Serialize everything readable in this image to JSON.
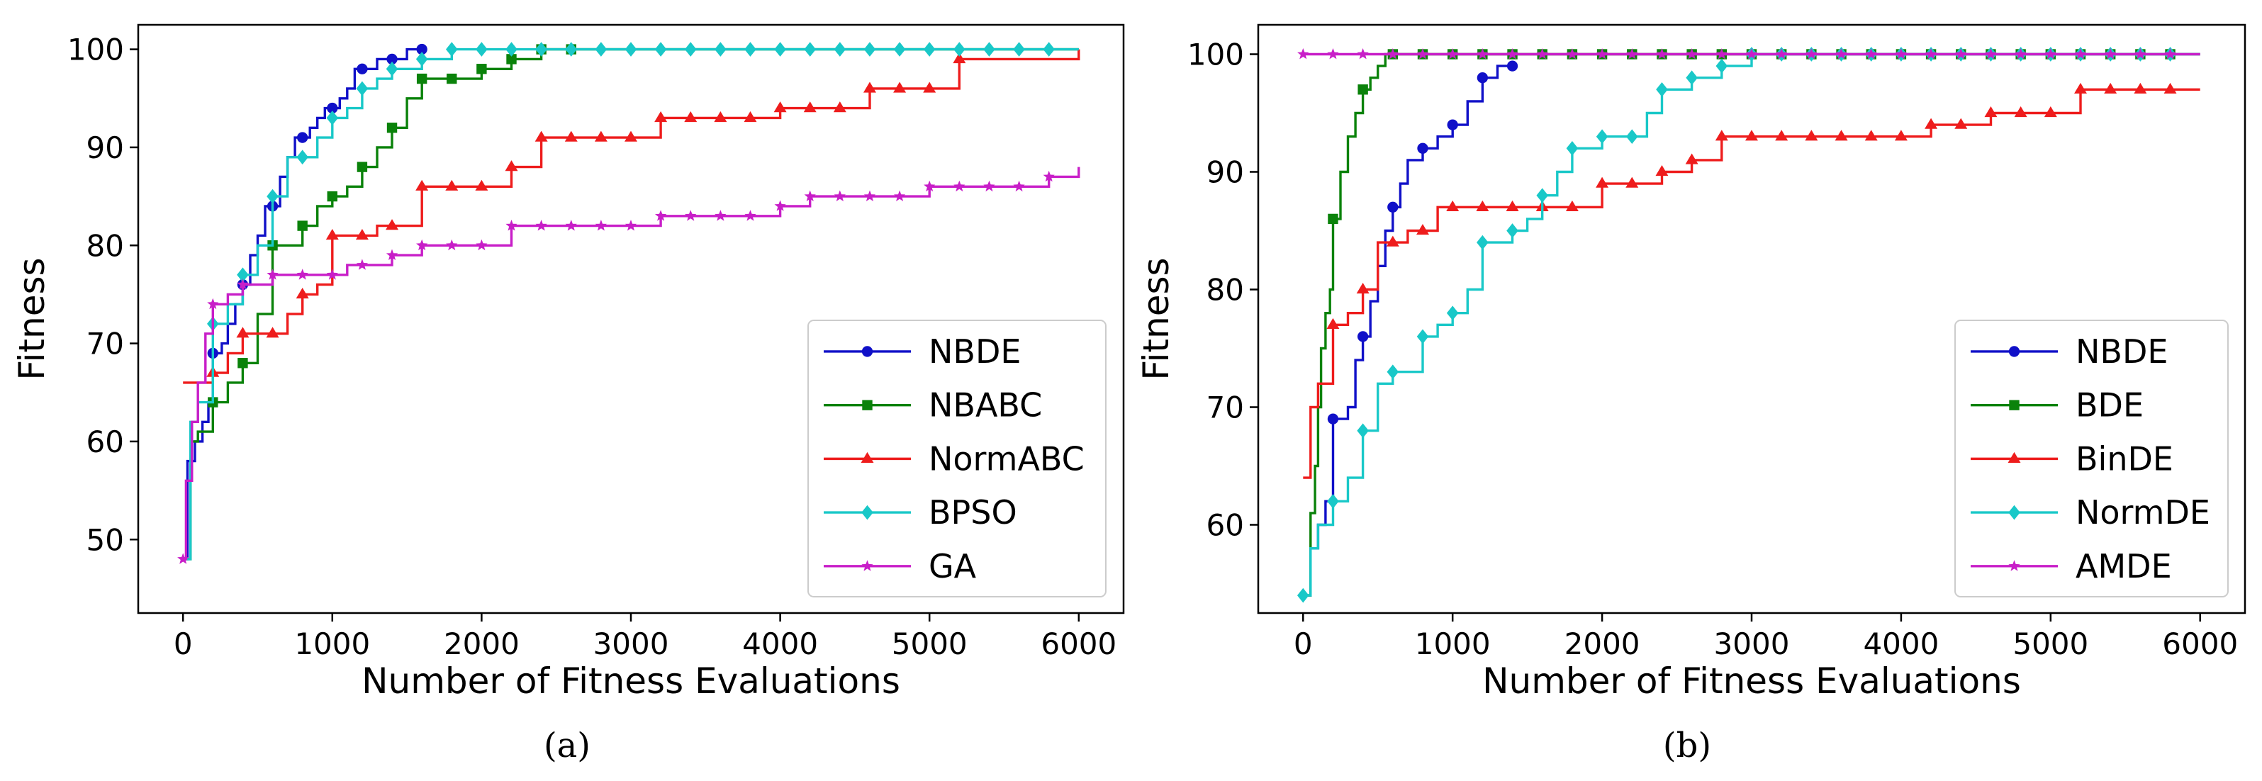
{
  "chart_data": [
    {
      "type": "line",
      "panel_label": "(a)",
      "xlabel": "Number of Fitness Evaluations",
      "ylabel": "Fitness",
      "xlim": [
        -300,
        6300
      ],
      "ylim": [
        42.5,
        102.5
      ],
      "xticks": [
        0,
        1000,
        2000,
        3000,
        4000,
        5000,
        6000
      ],
      "yticks": [
        50,
        60,
        70,
        80,
        90,
        100
      ],
      "legend_position": "lower-right",
      "series": [
        {
          "name": "NBDE",
          "color": "#1010c8",
          "marker": "circle",
          "x": [
            0,
            30,
            80,
            130,
            170,
            200,
            260,
            300,
            350,
            400,
            450,
            500,
            550,
            600,
            650,
            700,
            750,
            800,
            850,
            900,
            950,
            1000,
            1050,
            1100,
            1150,
            1200,
            1300,
            1400,
            1500,
            1600
          ],
          "y": [
            48,
            58,
            60,
            62,
            64,
            69,
            70,
            72,
            74,
            76,
            79,
            81,
            84,
            84,
            87,
            89,
            91,
            91,
            92,
            93,
            94,
            94,
            95,
            96,
            98,
            98,
            99,
            99,
            100,
            100
          ],
          "marker_x": [
            200,
            400,
            600,
            800,
            1000,
            1200,
            1400,
            1600
          ]
        },
        {
          "name": "NBABC",
          "color": "#0a820a",
          "marker": "square",
          "x": [
            0,
            50,
            100,
            200,
            300,
            400,
            500,
            600,
            700,
            800,
            900,
            1000,
            1100,
            1200,
            1300,
            1400,
            1500,
            1600,
            1800,
            2000,
            2200,
            2400,
            2600,
            6000
          ],
          "y": [
            48,
            60,
            61,
            64,
            66,
            68,
            73,
            80,
            80,
            82,
            84,
            85,
            86,
            88,
            90,
            92,
            95,
            97,
            97,
            98,
            99,
            100,
            100,
            100
          ],
          "marker_x": [
            200,
            400,
            600,
            800,
            1000,
            1200,
            1400,
            1600,
            1800,
            2000,
            2200,
            2400,
            2600
          ]
        },
        {
          "name": "NormABC",
          "color": "#ee1c1c",
          "marker": "triangle",
          "x": [
            0,
            200,
            300,
            400,
            600,
            700,
            800,
            900,
            1000,
            1200,
            1300,
            1400,
            1600,
            1800,
            2000,
            2200,
            2400,
            2600,
            2800,
            3000,
            3200,
            3400,
            3600,
            3800,
            4000,
            4200,
            4400,
            4600,
            4800,
            5000,
            5200,
            5400,
            6000
          ],
          "y": [
            66,
            67,
            69,
            71,
            71,
            73,
            75,
            76,
            81,
            81,
            82,
            82,
            86,
            86,
            86,
            88,
            91,
            91,
            91,
            91,
            93,
            93,
            93,
            93,
            94,
            94,
            94,
            96,
            96,
            96,
            99,
            99,
            100
          ],
          "marker_x": [
            200,
            400,
            600,
            800,
            1000,
            1200,
            1400,
            1600,
            1800,
            2000,
            2200,
            2400,
            2600,
            2800,
            3000,
            3200,
            3400,
            3600,
            3800,
            4000,
            4200,
            4400,
            4600,
            4800,
            5000,
            5200
          ]
        },
        {
          "name": "BPSO",
          "color": "#19c8c8",
          "marker": "diamond",
          "x": [
            0,
            50,
            100,
            200,
            300,
            400,
            500,
            600,
            700,
            800,
            900,
            1000,
            1100,
            1200,
            1300,
            1400,
            1500,
            1600,
            1800,
            2000,
            6000
          ],
          "y": [
            48,
            62,
            64,
            72,
            74,
            77,
            80,
            85,
            89,
            89,
            91,
            93,
            94,
            96,
            97,
            98,
            98,
            99,
            100,
            100,
            100
          ],
          "marker_x": [
            200,
            400,
            600,
            800,
            1000,
            1200,
            1400,
            1600,
            1800,
            2000,
            2200,
            2400,
            2600,
            2800,
            3000,
            3200,
            3400,
            3600,
            3800,
            4000,
            4200,
            4400,
            4600,
            4800,
            5000,
            5200,
            5400,
            5600,
            5800
          ]
        },
        {
          "name": "GA",
          "color": "#c81ec8",
          "marker": "star",
          "x": [
            0,
            20,
            60,
            100,
            150,
            200,
            300,
            400,
            600,
            1000,
            1100,
            1200,
            1400,
            1600,
            1800,
            2000,
            2200,
            2400,
            2600,
            2800,
            3000,
            3200,
            3400,
            3600,
            3800,
            4000,
            4200,
            4400,
            4600,
            4800,
            5000,
            5200,
            5400,
            5600,
            5800,
            5900,
            6000
          ],
          "y": [
            48,
            56,
            62,
            66,
            71,
            74,
            75,
            76,
            77,
            77,
            78,
            78,
            79,
            80,
            80,
            80,
            82,
            82,
            82,
            82,
            82,
            83,
            83,
            83,
            83,
            84,
            85,
            85,
            85,
            85,
            86,
            86,
            86,
            86,
            87,
            87,
            88
          ],
          "marker_x": [
            0,
            200,
            400,
            600,
            800,
            1000,
            1200,
            1400,
            1600,
            1800,
            2000,
            2200,
            2400,
            2600,
            2800,
            3000,
            3200,
            3400,
            3600,
            3800,
            4000,
            4200,
            4400,
            4600,
            4800,
            5000,
            5200,
            5400,
            5600,
            5800
          ]
        }
      ]
    },
    {
      "type": "line",
      "panel_label": "(b)",
      "xlabel": "Number of Fitness Evaluations",
      "ylabel": "Fitness",
      "xlim": [
        -300,
        6300
      ],
      "ylim": [
        52.5,
        102.5
      ],
      "xticks": [
        0,
        1000,
        2000,
        3000,
        4000,
        5000,
        6000
      ],
      "yticks": [
        60,
        70,
        80,
        90,
        100
      ],
      "legend_position": "lower-right",
      "series": [
        {
          "name": "NBDE",
          "color": "#1010c8",
          "marker": "circle",
          "x": [
            0,
            50,
            100,
            150,
            200,
            300,
            350,
            400,
            450,
            500,
            550,
            600,
            650,
            700,
            800,
            900,
            1000,
            1100,
            1200,
            1300,
            1400
          ],
          "y": [
            54,
            58,
            60,
            62,
            69,
            70,
            74,
            76,
            79,
            82,
            85,
            87,
            89,
            91,
            92,
            93,
            94,
            96,
            98,
            99,
            99
          ],
          "marker_x": [
            200,
            400,
            600,
            800,
            1000,
            1200,
            1400
          ]
        },
        {
          "name": "BDE",
          "color": "#0a820a",
          "marker": "square",
          "x": [
            0,
            50,
            80,
            100,
            120,
            150,
            180,
            200,
            250,
            300,
            350,
            400,
            450,
            500,
            550,
            600,
            6000
          ],
          "y": [
            54,
            61,
            65,
            70,
            75,
            78,
            80,
            86,
            90,
            93,
            95,
            97,
            98,
            99,
            100,
            100,
            100
          ],
          "marker_x": [
            200,
            400,
            600,
            800,
            1000,
            1200,
            1400,
            1600,
            1800,
            2000,
            2200,
            2400,
            2600,
            2800,
            3000,
            3200,
            3400,
            3600,
            3800,
            4000,
            4200,
            4400,
            4600,
            4800,
            5000,
            5200,
            5400,
            5600,
            5800
          ]
        },
        {
          "name": "BinDE",
          "color": "#ee1c1c",
          "marker": "triangle",
          "x": [
            0,
            50,
            100,
            200,
            300,
            400,
            500,
            600,
            700,
            800,
            900,
            1000,
            1200,
            1400,
            1600,
            1800,
            2000,
            2200,
            2400,
            2600,
            2800,
            3000,
            3200,
            3400,
            3600,
            3800,
            4000,
            4200,
            4400,
            4600,
            4800,
            5000,
            5200,
            5400,
            6000
          ],
          "y": [
            64,
            70,
            72,
            77,
            78,
            80,
            84,
            84,
            85,
            85,
            87,
            87,
            87,
            87,
            87,
            87,
            89,
            89,
            90,
            91,
            93,
            93,
            93,
            93,
            93,
            93,
            93,
            94,
            94,
            95,
            95,
            95,
            97,
            97,
            97
          ],
          "marker_x": [
            200,
            400,
            600,
            800,
            1000,
            1200,
            1400,
            1600,
            1800,
            2000,
            2200,
            2400,
            2600,
            2800,
            3000,
            3200,
            3400,
            3600,
            3800,
            4000,
            4200,
            4400,
            4600,
            4800,
            5000,
            5200,
            5400,
            5600,
            5800
          ]
        },
        {
          "name": "NormDE",
          "color": "#19c8c8",
          "marker": "diamond",
          "x": [
            0,
            50,
            100,
            200,
            300,
            400,
            500,
            600,
            800,
            900,
            1000,
            1100,
            1200,
            1400,
            1500,
            1600,
            1700,
            1800,
            2000,
            2200,
            2300,
            2400,
            2500,
            2600,
            2700,
            2800,
            3000,
            6000
          ],
          "y": [
            54,
            58,
            60,
            62,
            64,
            68,
            72,
            73,
            76,
            77,
            78,
            80,
            84,
            85,
            86,
            88,
            90,
            92,
            93,
            93,
            95,
            97,
            97,
            98,
            98,
            99,
            100,
            100
          ],
          "marker_x": [
            0,
            200,
            400,
            600,
            800,
            1000,
            1200,
            1400,
            1600,
            1800,
            2000,
            2200,
            2400,
            2600,
            2800,
            3000,
            3200,
            3400,
            3600,
            3800,
            4000,
            4200,
            4400,
            4600,
            4800,
            5000,
            5200,
            5400,
            5600,
            5800
          ]
        },
        {
          "name": "AMDE",
          "color": "#c81ec8",
          "marker": "star",
          "x": [
            0,
            6000
          ],
          "y": [
            100,
            100
          ],
          "marker_x": [
            0,
            200,
            400,
            600,
            800,
            1000,
            1200,
            1400,
            1600,
            1800,
            2000,
            2200,
            2400,
            2600,
            2800,
            3000,
            3200,
            3400,
            3600,
            3800,
            4000,
            4200,
            4400,
            4600,
            4800,
            5000,
            5200,
            5400,
            5600,
            5800
          ]
        }
      ]
    }
  ]
}
